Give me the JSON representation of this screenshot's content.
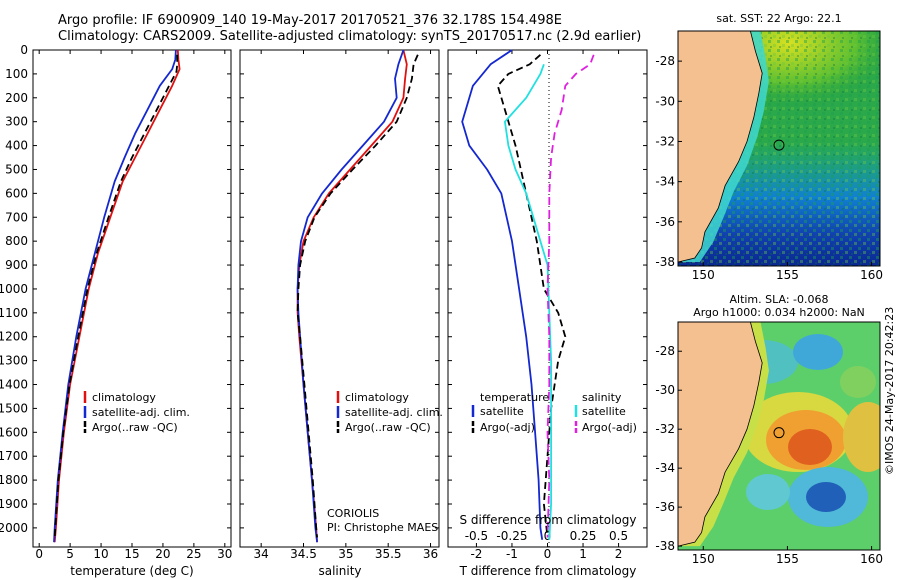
{
  "header": {
    "title_line1": "Argo profile: IF 6900909_140 19-May-2017 20170521_376 32.178S 154.498E",
    "title_line2": "Climatology: CARS2009. Satellite-adjusted climatology: synTS_20170517.nc (2.9d earlier)"
  },
  "colors": {
    "climatology": "#e01010",
    "satellite": "#1428d0",
    "argo": "#000000",
    "satellite_salinity": "#20e0e0",
    "argo_salinity": "#e020e0",
    "land": "#f5c090"
  },
  "chart_data": [
    {
      "id": "temperature",
      "type": "line",
      "xlabel": "temperature (deg C)",
      "ylabel": "",
      "xlim": [
        -1,
        31
      ],
      "ylim": [
        2080,
        0
      ],
      "xticks": [
        0,
        5,
        10,
        15,
        20,
        25,
        30
      ],
      "xtick_labels": [
        "0",
        "5",
        "10",
        "15",
        "20",
        "25",
        "30"
      ],
      "yticks": [
        0,
        100,
        200,
        300,
        400,
        500,
        600,
        700,
        800,
        900,
        1000,
        1100,
        1200,
        1300,
        1400,
        1500,
        1600,
        1700,
        1800,
        1900,
        2000
      ],
      "ytick_labels": [
        "0",
        "100",
        "200",
        "300",
        "400",
        "500",
        "600",
        "700",
        "800",
        "900",
        "1000",
        "1100",
        "1200",
        "1300",
        "1400",
        "1500",
        "1600",
        "1700",
        "1800",
        "1900",
        "2000"
      ],
      "legend": [
        "climatology",
        "satellite-adj. clim.",
        "Argo(..raw -QC)"
      ],
      "series": [
        {
          "name": "climatology",
          "color": "#e01010",
          "dash": "",
          "points": [
            [
              22.4,
              0
            ],
            [
              22.5,
              40
            ],
            [
              22.7,
              80
            ],
            [
              21.5,
              150
            ],
            [
              19.5,
              250
            ],
            [
              17.5,
              350
            ],
            [
              15.5,
              450
            ],
            [
              13.5,
              550
            ],
            [
              11.5,
              700
            ],
            [
              9.5,
              850
            ],
            [
              8,
              1000
            ],
            [
              6.5,
              1200
            ],
            [
              5,
              1400
            ],
            [
              4,
              1600
            ],
            [
              3.2,
              1800
            ],
            [
              2.7,
              2000
            ],
            [
              2.5,
              2060
            ]
          ]
        },
        {
          "name": "satellite-adj. clim.",
          "color": "#1428d0",
          "dash": "",
          "points": [
            [
              22.1,
              0
            ],
            [
              22,
              40
            ],
            [
              21.5,
              80
            ],
            [
              19.5,
              150
            ],
            [
              17.5,
              250
            ],
            [
              15.5,
              350
            ],
            [
              13.8,
              450
            ],
            [
              12.2,
              550
            ],
            [
              10.5,
              700
            ],
            [
              9,
              850
            ],
            [
              7.5,
              1000
            ],
            [
              6,
              1200
            ],
            [
              4.7,
              1400
            ],
            [
              3.8,
              1600
            ],
            [
              3,
              1800
            ],
            [
              2.5,
              2000
            ],
            [
              2.4,
              2060
            ]
          ]
        },
        {
          "name": "Argo(..raw -QC)",
          "color": "#000000",
          "dash": "7,4",
          "points": [
            [
              22.3,
              20
            ],
            [
              22.3,
              60
            ],
            [
              22.2,
              90
            ],
            [
              21,
              150
            ],
            [
              19,
              250
            ],
            [
              17,
              350
            ],
            [
              15,
              450
            ],
            [
              13.2,
              550
            ],
            [
              11.2,
              700
            ],
            [
              9.3,
              850
            ],
            [
              7.8,
              1000
            ],
            [
              6.3,
              1200
            ],
            [
              4.9,
              1400
            ],
            [
              3.9,
              1600
            ],
            [
              3.1,
              1800
            ],
            [
              2.6,
              2000
            ],
            [
              2.5,
              2040
            ]
          ]
        }
      ]
    },
    {
      "id": "salinity",
      "type": "line",
      "xlabel": "salinity",
      "ylabel": "",
      "xlim": [
        33.75,
        36.1
      ],
      "ylim": [
        2080,
        0
      ],
      "xticks": [
        34,
        34.5,
        35,
        35.5,
        36
      ],
      "xtick_labels": [
        "34",
        "34.5",
        "35",
        "35.5",
        "36"
      ],
      "legend": [
        "climatology",
        "satellite-adj. clim.",
        "Argo(..raw -QC)"
      ],
      "annotations": [
        "CORIOLIS",
        "PI: Christophe MAES"
      ],
      "series": [
        {
          "name": "climatology",
          "color": "#e01010",
          "dash": "",
          "points": [
            [
              35.68,
              0
            ],
            [
              35.72,
              60
            ],
            [
              35.7,
              120
            ],
            [
              35.68,
              200
            ],
            [
              35.55,
              300
            ],
            [
              35.3,
              400
            ],
            [
              35.05,
              500
            ],
            [
              34.8,
              600
            ],
            [
              34.62,
              700
            ],
            [
              34.5,
              800
            ],
            [
              34.45,
              900
            ],
            [
              34.43,
              1000
            ],
            [
              34.43,
              1100
            ],
            [
              34.45,
              1200
            ],
            [
              34.5,
              1400
            ],
            [
              34.55,
              1600
            ],
            [
              34.6,
              1800
            ],
            [
              34.65,
              2000
            ],
            [
              34.66,
              2060
            ]
          ]
        },
        {
          "name": "satellite-adj. clim.",
          "color": "#1428d0",
          "dash": "",
          "points": [
            [
              35.68,
              0
            ],
            [
              35.62,
              60
            ],
            [
              35.58,
              120
            ],
            [
              35.6,
              200
            ],
            [
              35.45,
              300
            ],
            [
              35.2,
              400
            ],
            [
              34.95,
              500
            ],
            [
              34.72,
              600
            ],
            [
              34.55,
              700
            ],
            [
              34.47,
              800
            ],
            [
              34.44,
              900
            ],
            [
              34.43,
              1000
            ],
            [
              34.44,
              1100
            ],
            [
              34.46,
              1200
            ],
            [
              34.5,
              1400
            ],
            [
              34.55,
              1600
            ],
            [
              34.6,
              1800
            ],
            [
              34.64,
              2000
            ],
            [
              34.66,
              2060
            ]
          ]
        },
        {
          "name": "Argo(..raw -QC)",
          "color": "#000000",
          "dash": "7,4",
          "points": [
            [
              35.85,
              20
            ],
            [
              35.8,
              60
            ],
            [
              35.78,
              120
            ],
            [
              35.72,
              200
            ],
            [
              35.6,
              300
            ],
            [
              35.35,
              400
            ],
            [
              35.08,
              500
            ],
            [
              34.82,
              600
            ],
            [
              34.63,
              700
            ],
            [
              34.52,
              800
            ],
            [
              34.46,
              900
            ],
            [
              34.44,
              1000
            ],
            [
              34.43,
              1100
            ],
            [
              34.46,
              1200
            ],
            [
              34.51,
              1400
            ],
            [
              34.56,
              1600
            ],
            [
              34.61,
              1800
            ],
            [
              34.65,
              2000
            ],
            [
              34.66,
              2040
            ]
          ]
        }
      ]
    },
    {
      "id": "difference",
      "type": "line",
      "xlabel": "T difference from climatology",
      "top_label": "S difference from climatology",
      "xlim": [
        -2.8,
        2.8
      ],
      "ylim": [
        2080,
        0
      ],
      "xticks": [
        -2,
        -1,
        0,
        1,
        2
      ],
      "xtick_labels": [
        "-2",
        "-1",
        "0",
        "1",
        "2"
      ],
      "top_ticks": [
        -0.5,
        -0.25,
        0,
        0.25,
        0.5
      ],
      "top_tick_labels": [
        "-0.5",
        "-0.25",
        "0",
        "0.25",
        "0.5"
      ],
      "legend_headers": [
        "temperature",
        "salinity"
      ],
      "legend_temperature": [
        "satellite",
        "Argo(-adj)"
      ],
      "legend_salinity": [
        "satellite",
        "Argo(-adj)"
      ],
      "series": [
        {
          "name": "T satellite",
          "color": "#1428d0",
          "dash": "",
          "points": [
            [
              -1,
              0
            ],
            [
              -1.6,
              60
            ],
            [
              -2.1,
              150
            ],
            [
              -2.4,
              300
            ],
            [
              -2.2,
              400
            ],
            [
              -1.7,
              500
            ],
            [
              -1.3,
              600
            ],
            [
              -1,
              800
            ],
            [
              -0.8,
              1000
            ],
            [
              -0.6,
              1200
            ],
            [
              -0.45,
              1400
            ],
            [
              -0.35,
              1600
            ],
            [
              -0.25,
              1800
            ],
            [
              -0.2,
              2000
            ],
            [
              -0.15,
              2050
            ]
          ]
        },
        {
          "name": "T Argo(-adj)",
          "color": "#000000",
          "dash": "7,4",
          "points": [
            [
              -0.2,
              20
            ],
            [
              -0.5,
              60
            ],
            [
              -1.1,
              100
            ],
            [
              -1.4,
              150
            ],
            [
              -1.2,
              250
            ],
            [
              -0.9,
              400
            ],
            [
              -0.6,
              600
            ],
            [
              -0.3,
              800
            ],
            [
              -0.1,
              1000
            ],
            [
              0.3,
              1100
            ],
            [
              0.5,
              1200
            ],
            [
              0.3,
              1300
            ],
            [
              0.1,
              1500
            ],
            [
              0,
              1700
            ],
            [
              -0.1,
              1900
            ],
            [
              0,
              2040
            ]
          ]
        },
        {
          "name": "S satellite",
          "color": "#20e0e0",
          "dash": "",
          "points": [
            [
              -0.1,
              60
            ],
            [
              -0.2,
              100
            ],
            [
              -0.6,
              200
            ],
            [
              -1.2,
              300
            ],
            [
              -1.1,
              400
            ],
            [
              -0.9,
              500
            ],
            [
              -0.6,
              600
            ],
            [
              -0.4,
              700
            ],
            [
              -0.2,
              800
            ],
            [
              0,
              900
            ],
            [
              0.05,
              1100
            ],
            [
              0.1,
              1300
            ],
            [
              0.1,
              1600
            ],
            [
              0.1,
              1900
            ],
            [
              0.05,
              2050
            ]
          ]
        },
        {
          "name": "S Argo(-adj)",
          "color": "#e020e0",
          "dash": "8,5",
          "points": [
            [
              1.3,
              20
            ],
            [
              1.2,
              60
            ],
            [
              0.8,
              100
            ],
            [
              0.5,
              150
            ],
            [
              0.4,
              250
            ],
            [
              0.2,
              350
            ],
            [
              0.1,
              450
            ],
            [
              0.05,
              600
            ],
            [
              0.05,
              800
            ],
            [
              0,
              1000
            ],
            [
              0.05,
              1200
            ],
            [
              0.05,
              1400
            ],
            [
              0,
              1600
            ],
            [
              0.05,
              1800
            ],
            [
              0,
              2040
            ]
          ]
        }
      ]
    },
    {
      "id": "sst_map",
      "type": "heatmap",
      "title": "sat. SST: 22  Argo: 22.1",
      "xlim": [
        148.5,
        160.5
      ],
      "ylim": [
        -38.2,
        -26.5
      ],
      "xticks": [
        150,
        155,
        160
      ],
      "xtick_labels": [
        "150",
        "155",
        "160"
      ],
      "yticks": [
        -28,
        -30,
        -32,
        -34,
        -36,
        -38
      ],
      "ytick_labels": [
        "-28",
        "-30",
        "-32",
        "-34",
        "-36",
        "-38"
      ],
      "marker": [
        154.5,
        -32.18
      ],
      "coast": [
        [
          152.8,
          -26.5
        ],
        [
          153.1,
          -27.5
        ],
        [
          153.5,
          -28.6
        ],
        [
          153.3,
          -29.6
        ],
        [
          153.0,
          -30.8
        ],
        [
          152.6,
          -32.0
        ],
        [
          152.1,
          -33.0
        ],
        [
          151.3,
          -34.2
        ],
        [
          150.9,
          -35.3
        ],
        [
          150.1,
          -36.5
        ],
        [
          149.9,
          -37.3
        ],
        [
          149.5,
          -37.8
        ],
        [
          148.5,
          -38.0
        ]
      ],
      "shelf": [
        [
          153.4,
          -26.5
        ],
        [
          153.7,
          -27.8
        ],
        [
          153.9,
          -29.0
        ],
        [
          153.6,
          -30.5
        ],
        [
          153.2,
          -31.8
        ],
        [
          152.6,
          -33.2
        ],
        [
          151.8,
          -34.5
        ],
        [
          151.2,
          -35.8
        ],
        [
          150.6,
          -37.0
        ],
        [
          149.8,
          -38.0
        ]
      ]
    },
    {
      "id": "sla_map",
      "type": "heatmap",
      "title_line1": "Altim. SLA: -0.068",
      "title_line2": "Argo h1000: 0.034  h2000: NaN",
      "xlim": [
        148.5,
        160.5
      ],
      "ylim": [
        -38.2,
        -26.5
      ],
      "xticks": [
        150,
        155,
        160
      ],
      "xtick_labels": [
        "150",
        "155",
        "160"
      ],
      "yticks": [
        -28,
        -30,
        -32,
        -34,
        -36,
        -38
      ],
      "ytick_labels": [
        "-28",
        "-30",
        "-32",
        "-34",
        "-36",
        "-38"
      ],
      "marker": [
        154.5,
        -32.18
      ]
    }
  ],
  "credit": "©IMOS 24-May-2017 20:42:23"
}
